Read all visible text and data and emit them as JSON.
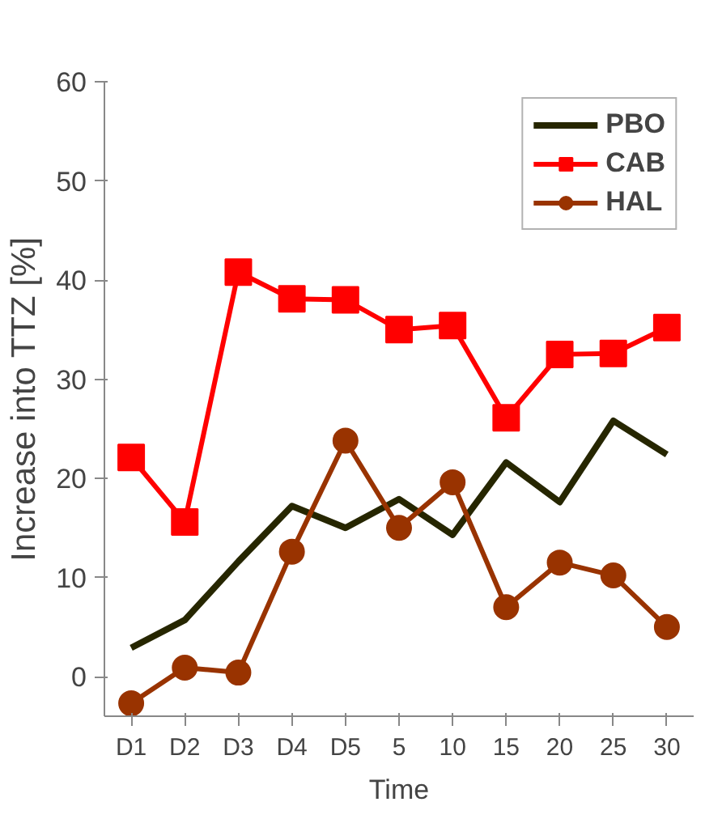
{
  "chart_data": {
    "type": "line",
    "xlabel": "Time",
    "ylabel": "Increase into TTZ [%]",
    "categories": [
      "D1",
      "D2",
      "D3",
      "D4",
      "D5",
      "5",
      "10",
      "15",
      "20",
      "25",
      "30"
    ],
    "ylim": [
      -4,
      60
    ],
    "yticks": [
      0,
      10,
      20,
      30,
      40,
      50,
      60
    ],
    "grid": false,
    "legend": "top right",
    "series": [
      {
        "name": "PBO",
        "color": "#262600",
        "marker": "none",
        "values": [
          2.9,
          5.7,
          11.6,
          17.2,
          15.0,
          17.9,
          14.3,
          21.6,
          17.6,
          25.8,
          22.4
        ]
      },
      {
        "name": "CAB",
        "color": "#ff0000",
        "marker": "square",
        "values": [
          22.1,
          15.6,
          40.8,
          38.1,
          38.0,
          35.0,
          35.4,
          26.1,
          32.5,
          32.6,
          35.2
        ]
      },
      {
        "name": "HAL",
        "color": "#993300",
        "marker": "circle",
        "values": [
          -2.7,
          0.9,
          0.4,
          12.6,
          23.8,
          15.0,
          19.6,
          7.0,
          11.5,
          10.2,
          5.0
        ]
      }
    ]
  }
}
